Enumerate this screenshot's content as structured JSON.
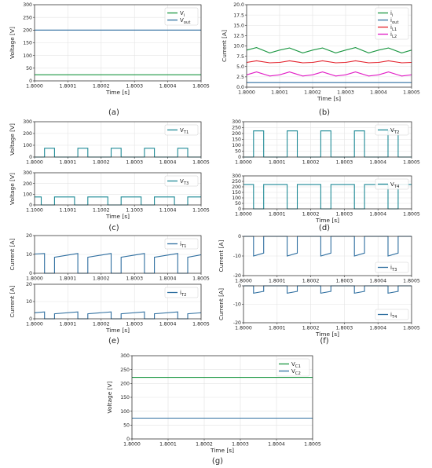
{
  "colors": {
    "blue": "#2f6fa0",
    "green": "#1a9641",
    "red": "#e3202a",
    "magenta": "#e11ac5",
    "teal": "#1f8a96",
    "grid": "#e3e3e3"
  },
  "chart_data": [
    {
      "type": "line",
      "caption": "(a)",
      "xlabel": "Time [s]",
      "ylabel": "Voltage [V]",
      "xlim": [
        1.8,
        1.8005
      ],
      "ylim": [
        0,
        300
      ],
      "xticks": [
        "1.8000",
        "1.8001",
        "1.8002",
        "1.8003",
        "1.8004",
        "1.8005"
      ],
      "yticks": [
        0,
        50,
        100,
        150,
        200,
        250,
        300
      ],
      "legend_loc": "top-right",
      "grid": true,
      "series": [
        {
          "name": "V_i",
          "sub": "i",
          "color": "#1a9641",
          "x": [
            1.8,
            1.8005
          ],
          "y": [
            24,
            24
          ]
        },
        {
          "name": "V_out",
          "sub": "out",
          "color": "#2f6fa0",
          "x": [
            1.8,
            1.8005
          ],
          "y": [
            200,
            200
          ]
        }
      ]
    },
    {
      "type": "line",
      "caption": "(b)",
      "xlabel": "Time [s]",
      "ylabel": "Current [A]",
      "xlim": [
        1.8,
        1.8005
      ],
      "ylim": [
        0,
        20
      ],
      "xticks": [
        "1.8000",
        "1.8001",
        "1.8002",
        "1.8003",
        "1.8004",
        "1.8005"
      ],
      "yticks": [
        "0.0",
        "2.5",
        "5.0",
        "7.5",
        "10.0",
        "12.5",
        "15.0",
        "17.5",
        "20.0"
      ],
      "legend_loc": "top-right",
      "grid": true,
      "series": [
        {
          "name": "i_i",
          "sub": "i",
          "color": "#1a9641",
          "x": [
            1.8,
            1.80003,
            1.80007,
            1.8001,
            1.80013,
            1.80017,
            1.8002,
            1.80023,
            1.80027,
            1.8003,
            1.80033,
            1.80037,
            1.8004,
            1.80043,
            1.80047,
            1.8005
          ],
          "y": [
            9.0,
            9.6,
            8.3,
            9.0,
            9.5,
            8.3,
            9.0,
            9.5,
            8.3,
            9.0,
            9.6,
            8.3,
            9.0,
            9.5,
            8.3,
            9.0
          ]
        },
        {
          "name": "i_out",
          "sub": "out",
          "color": "#2f6fa0",
          "x": [
            1.8,
            1.8005
          ],
          "y": [
            1.1,
            1.1
          ]
        },
        {
          "name": "i_L1",
          "sub": "L1",
          "color": "#e3202a",
          "x": [
            1.8,
            1.80003,
            1.80007,
            1.8001,
            1.80013,
            1.80017,
            1.8002,
            1.80023,
            1.80027,
            1.8003,
            1.80033,
            1.80037,
            1.8004,
            1.80043,
            1.80047,
            1.8005
          ],
          "y": [
            6.0,
            6.4,
            5.9,
            6.0,
            6.4,
            5.9,
            6.0,
            6.4,
            5.9,
            6.0,
            6.4,
            5.9,
            6.0,
            6.4,
            5.9,
            6.0
          ]
        },
        {
          "name": "i_L2",
          "sub": "L2",
          "color": "#e11ac5",
          "x": [
            1.8,
            1.80003,
            1.80007,
            1.8001,
            1.80013,
            1.80017,
            1.8002,
            1.80023,
            1.80027,
            1.8003,
            1.80033,
            1.80037,
            1.8004,
            1.80043,
            1.80047,
            1.8005
          ],
          "y": [
            3.0,
            3.7,
            2.7,
            3.0,
            3.7,
            2.7,
            3.0,
            3.7,
            2.7,
            3.0,
            3.7,
            2.7,
            3.0,
            3.7,
            2.7,
            3.0
          ]
        }
      ]
    },
    {
      "type": "line",
      "caption": "(c)",
      "xlabel": "Time [s]",
      "ylabel": "Voltage [V]",
      "xlim": [
        1.8,
        1.8005
      ],
      "ylim": [
        0,
        300
      ],
      "xticks": [
        "1.8000",
        "1.8001",
        "1.8002",
        "1.8003",
        "1.8004",
        "1.8005"
      ],
      "yticks": [
        0,
        100,
        200,
        300
      ],
      "legend_loc": "top-right",
      "grid": true,
      "series": [
        {
          "name": "V_T1",
          "sub": "T1",
          "color": "#1f8a96",
          "x": [
            1.8,
            1.80003,
            1.80003,
            1.80006,
            1.80006,
            1.80013,
            1.80013,
            1.80016,
            1.80016,
            1.80023,
            1.80023,
            1.80026,
            1.80026,
            1.80033,
            1.80033,
            1.80036,
            1.80036,
            1.80043,
            1.80043,
            1.80046,
            1.80046,
            1.8005
          ],
          "y": [
            0,
            0,
            75,
            75,
            0,
            0,
            75,
            75,
            0,
            0,
            75,
            75,
            0,
            0,
            75,
            75,
            0,
            0,
            75,
            75,
            0,
            0
          ]
        }
      ]
    },
    {
      "type": "line",
      "xlabel": "Time [s]",
      "ylabel": "Voltage [V]",
      "xlim": [
        1.1,
        1.1005
      ],
      "ylim": [
        0,
        300
      ],
      "xticks": [
        "1.1000",
        "1.1001",
        "1.1002",
        "1.1003",
        "1.1004",
        "1.1005"
      ],
      "yticks": [
        0,
        100,
        200,
        300
      ],
      "legend_loc": "top-right",
      "grid": true,
      "series": [
        {
          "name": "V_T3",
          "sub": "T3",
          "color": "#1f8a96",
          "x": [
            1.1,
            1.10002,
            1.10002,
            1.10006,
            1.10006,
            1.10012,
            1.10012,
            1.10016,
            1.10016,
            1.10022,
            1.10022,
            1.10026,
            1.10026,
            1.10032,
            1.10032,
            1.10036,
            1.10036,
            1.10042,
            1.10042,
            1.10046,
            1.10046,
            1.1005
          ],
          "y": [
            75,
            75,
            0,
            0,
            75,
            75,
            0,
            0,
            75,
            75,
            0,
            0,
            75,
            75,
            0,
            0,
            75,
            75,
            0,
            0,
            75,
            75
          ]
        }
      ]
    },
    {
      "type": "line",
      "caption": "(d)",
      "xlabel": "Time [s]",
      "ylabel": "",
      "xlim": [
        1.8,
        1.8005
      ],
      "ylim": [
        0,
        300
      ],
      "xticks": [
        "1.8000",
        "1.8001",
        "1.8002",
        "1.8003",
        "1.8004",
        "1.8005"
      ],
      "yticks": [
        0,
        50,
        100,
        150,
        200,
        250,
        300
      ],
      "legend_loc": "top-right",
      "grid": true,
      "series": [
        {
          "name": "V_T2",
          "sub": "T2",
          "color": "#1f8a96",
          "x": [
            1.8,
            1.80003,
            1.80003,
            1.80006,
            1.80006,
            1.80013,
            1.80013,
            1.80016,
            1.80016,
            1.80023,
            1.80023,
            1.80026,
            1.80026,
            1.80033,
            1.80033,
            1.80036,
            1.80036,
            1.80043,
            1.80043,
            1.80046,
            1.80046,
            1.8005
          ],
          "y": [
            0,
            0,
            222,
            222,
            0,
            0,
            222,
            222,
            0,
            0,
            222,
            222,
            0,
            0,
            222,
            222,
            0,
            0,
            222,
            222,
            0,
            0
          ]
        }
      ]
    },
    {
      "type": "line",
      "xlabel": "Time [s]",
      "ylabel": "",
      "xlim": [
        1.8,
        1.8005
      ],
      "ylim": [
        0,
        300
      ],
      "xticks": [
        "1.8000",
        "1.8001",
        "1.8002",
        "1.8003",
        "1.8004",
        "1.8005"
      ],
      "yticks": [
        0,
        50,
        100,
        150,
        200,
        250,
        300
      ],
      "legend_loc": "top-right",
      "grid": true,
      "series": [
        {
          "name": "V_T4",
          "sub": "T4",
          "color": "#1f8a96",
          "x": [
            1.8,
            1.80003,
            1.80003,
            1.80006,
            1.80006,
            1.80013,
            1.80013,
            1.80016,
            1.80016,
            1.80023,
            1.80023,
            1.80026,
            1.80026,
            1.80033,
            1.80033,
            1.80036,
            1.80036,
            1.80043,
            1.80043,
            1.80046,
            1.80046,
            1.8005
          ],
          "y": [
            222,
            222,
            0,
            0,
            222,
            222,
            0,
            0,
            222,
            222,
            0,
            0,
            222,
            222,
            0,
            0,
            222,
            222,
            0,
            0,
            222,
            222
          ]
        }
      ]
    },
    {
      "type": "line",
      "caption": "(e)",
      "xlabel": "Time [s]",
      "ylabel": "Current [A]",
      "xlim": [
        1.8,
        1.8005
      ],
      "ylim": [
        0,
        20
      ],
      "xticks": [
        "1.8000",
        "1.8001",
        "1.8002",
        "1.8003",
        "1.8004",
        "1.8005"
      ],
      "yticks": [
        0,
        10,
        20
      ],
      "legend_loc": "top-right",
      "grid": true,
      "series": [
        {
          "name": "i_T1",
          "sub": "T1",
          "color": "#2f6fa0",
          "x": [
            1.8,
            1.80003,
            1.80003,
            1.80006,
            1.80006,
            1.80013,
            1.80013,
            1.80016,
            1.80016,
            1.80023,
            1.80023,
            1.80026,
            1.80026,
            1.80033,
            1.80033,
            1.80036,
            1.80036,
            1.80043,
            1.80043,
            1.80046,
            1.80046,
            1.8005
          ],
          "y": [
            10.2,
            10.5,
            0,
            0,
            8.5,
            10.5,
            0,
            0,
            8.5,
            10.5,
            0,
            0,
            8.5,
            10.5,
            0,
            0,
            8.5,
            10.5,
            0,
            0,
            8.5,
            9.8
          ]
        }
      ]
    },
    {
      "type": "line",
      "xlabel": "Time [s]",
      "ylabel": "Current [A]",
      "xlim": [
        1.8,
        1.8005
      ],
      "ylim": [
        0,
        20
      ],
      "xticks": [
        "1.8000",
        "1.8001",
        "1.8002",
        "1.8003",
        "1.8004",
        "1.8005"
      ],
      "yticks": [
        0,
        10,
        20
      ],
      "legend_loc": "top-right",
      "grid": true,
      "series": [
        {
          "name": "i_T2",
          "sub": "T2",
          "color": "#2f6fa0",
          "x": [
            1.8,
            1.80003,
            1.80003,
            1.80006,
            1.80006,
            1.80013,
            1.80013,
            1.80016,
            1.80016,
            1.80023,
            1.80023,
            1.80026,
            1.80026,
            1.80033,
            1.80033,
            1.80036,
            1.80036,
            1.80043,
            1.80043,
            1.80046,
            1.80046,
            1.8005
          ],
          "y": [
            3.5,
            4.0,
            0,
            0,
            2.9,
            4.0,
            0,
            0,
            2.9,
            4.0,
            0,
            0,
            2.9,
            4.0,
            0,
            0,
            2.9,
            4.0,
            0,
            0,
            2.9,
            3.5
          ]
        }
      ]
    },
    {
      "type": "line",
      "caption": "(f)",
      "xlabel": "Time [s]",
      "ylabel": "Current [A]",
      "xlim": [
        1.8,
        1.8005
      ],
      "ylim": [
        -20,
        0
      ],
      "xticks": [
        "1.8000",
        "1.8001",
        "1.8002",
        "1.8003",
        "1.8004",
        "1.8005"
      ],
      "yticks": [
        -20,
        -10,
        0
      ],
      "legend_loc": "bottom-right",
      "grid": true,
      "series": [
        {
          "name": "i_T3",
          "sub": "T3",
          "color": "#2f6fa0",
          "x": [
            1.8,
            1.80003,
            1.80003,
            1.80006,
            1.80006,
            1.80013,
            1.80013,
            1.80016,
            1.80016,
            1.80023,
            1.80023,
            1.80026,
            1.80026,
            1.80033,
            1.80033,
            1.80036,
            1.80036,
            1.80043,
            1.80043,
            1.80046,
            1.80046,
            1.8005
          ],
          "y": [
            0,
            0,
            -10.0,
            -8.5,
            0,
            0,
            -10.0,
            -8.5,
            0,
            0,
            -10.0,
            -8.5,
            0,
            0,
            -10.0,
            -8.5,
            0,
            0,
            -10.0,
            -8.5,
            0,
            0
          ]
        }
      ]
    },
    {
      "type": "line",
      "xlabel": "Time [s]",
      "ylabel": "Current [A]",
      "xlim": [
        1.8,
        1.8005
      ],
      "ylim": [
        -20,
        0
      ],
      "xticks": [
        "1.8000",
        "1.8001",
        "1.8002",
        "1.8003",
        "1.8004",
        "1.8005"
      ],
      "yticks": [
        -20,
        -10,
        0
      ],
      "legend_loc": "bottom-right",
      "grid": true,
      "series": [
        {
          "name": "i_T4",
          "sub": "T4",
          "color": "#2f6fa0",
          "x": [
            1.8,
            1.80003,
            1.80003,
            1.80006,
            1.80006,
            1.80013,
            1.80013,
            1.80016,
            1.80016,
            1.80023,
            1.80023,
            1.80026,
            1.80026,
            1.80033,
            1.80033,
            1.80036,
            1.80036,
            1.80043,
            1.80043,
            1.80046,
            1.80046,
            1.8005
          ],
          "y": [
            0,
            0,
            -4.0,
            -3.0,
            0,
            0,
            -4.0,
            -3.0,
            0,
            0,
            -4.0,
            -3.0,
            0,
            0,
            -4.0,
            -3.0,
            0,
            0,
            -4.0,
            -3.0,
            0,
            0
          ]
        }
      ]
    },
    {
      "type": "line",
      "caption": "(g)",
      "xlabel": "Time [s]",
      "ylabel": "Voltage [V]",
      "xlim": [
        1.8,
        1.8005
      ],
      "ylim": [
        0,
        300
      ],
      "xticks": [
        "1.8000",
        "1.8001",
        "1.8002",
        "1.8003",
        "1.8004",
        "1.8005"
      ],
      "yticks": [
        0,
        50,
        100,
        150,
        200,
        250,
        300
      ],
      "legend_loc": "top-right",
      "grid": true,
      "series": [
        {
          "name": "V_C1",
          "sub": "C1",
          "color": "#1a9641",
          "x": [
            1.8,
            1.8005
          ],
          "y": [
            222,
            222
          ]
        },
        {
          "name": "V_C2",
          "sub": "C2",
          "color": "#2f6fa0",
          "x": [
            1.8,
            1.8005
          ],
          "y": [
            75,
            75
          ]
        }
      ]
    }
  ]
}
